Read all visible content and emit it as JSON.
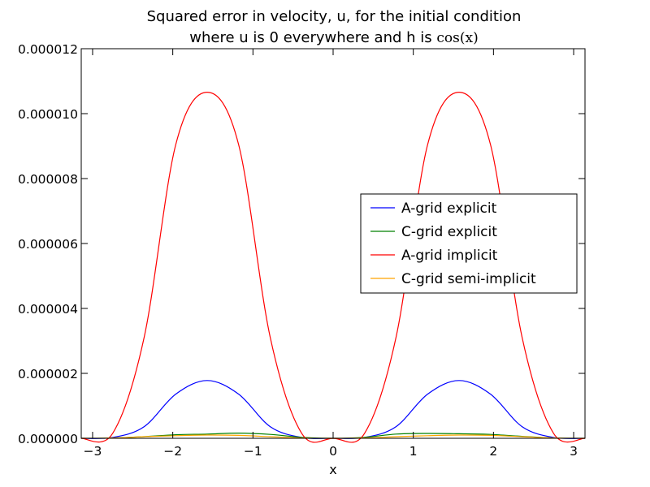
{
  "chart_data": {
    "type": "line",
    "title_line1": "Squared error in velocity, u, for the initial condition",
    "title_line2_text": "where u is 0 everywhere and h is ",
    "title_line2_math": "cos(x)",
    "xlabel": "x",
    "ylabel": "",
    "xlim": [
      -3.14159,
      3.14159
    ],
    "ylim": [
      0,
      1.2e-05
    ],
    "grid": false,
    "legend_position": "center-right",
    "x_ticks": [
      {
        "value": -3,
        "label": "−3"
      },
      {
        "value": -2,
        "label": "−2"
      },
      {
        "value": -1,
        "label": "−1"
      },
      {
        "value": 0,
        "label": "0"
      },
      {
        "value": 1,
        "label": "1"
      },
      {
        "value": 2,
        "label": "2"
      },
      {
        "value": 3,
        "label": "3"
      }
    ],
    "y_ticks": [
      {
        "value": 0,
        "label": "0.000000"
      },
      {
        "value": 2e-06,
        "label": "0.000002"
      },
      {
        "value": 4e-06,
        "label": "0.000004"
      },
      {
        "value": 6e-06,
        "label": "0.000006"
      },
      {
        "value": 8e-06,
        "label": "0.000008"
      },
      {
        "value": 1e-05,
        "label": "0.000010"
      },
      {
        "value": 1.2e-05,
        "label": "0.000012"
      }
    ],
    "x": [
      -3.1416,
      -2.7489,
      -2.3562,
      -1.9635,
      -1.5708,
      -1.1781,
      -0.7854,
      -0.3927,
      0.0,
      0.3927,
      0.7854,
      1.1781,
      1.5708,
      1.9635,
      2.3562,
      2.7489,
      3.1416
    ],
    "series": [
      {
        "name": "A-grid explicit",
        "color": "#0000ff",
        "values": [
          0.0,
          2.6e-08,
          3.6e-07,
          1.36e-06,
          1.78e-06,
          1.36e-06,
          3.6e-07,
          2.6e-08,
          0.0,
          2.6e-08,
          3.6e-07,
          1.36e-06,
          1.78e-06,
          1.36e-06,
          3.6e-07,
          2.6e-08,
          0.0
        ]
      },
      {
        "name": "C-grid explicit",
        "color": "#008000",
        "values": [
          0.0,
          1e-08,
          5e-08,
          1.1e-07,
          1.3e-07,
          1.6e-07,
          1.2e-07,
          3e-08,
          0.0,
          3e-08,
          1.3e-07,
          1.5e-07,
          1.4e-07,
          1.2e-07,
          6e-08,
          1e-08,
          0.0
        ]
      },
      {
        "name": "A-grid implicit",
        "color": "#ff0000",
        "values": [
          0.0,
          1.56e-07,
          3.12e-06,
          9.04e-06,
          1.066e-05,
          9.04e-06,
          3.12e-06,
          1.56e-07,
          0.0,
          1.56e-07,
          3.12e-06,
          9.04e-06,
          1.066e-05,
          9.04e-06,
          3.12e-06,
          1.56e-07,
          0.0
        ]
      },
      {
        "name": "C-grid semi-implicit",
        "color": "#ffa500",
        "values": [
          0.0,
          1e-08,
          5e-08,
          8e-08,
          1e-07,
          9e-08,
          5e-08,
          1e-08,
          0.0,
          1e-08,
          5e-08,
          8e-08,
          1e-07,
          9e-08,
          5e-08,
          1e-08,
          0.0
        ]
      }
    ]
  }
}
